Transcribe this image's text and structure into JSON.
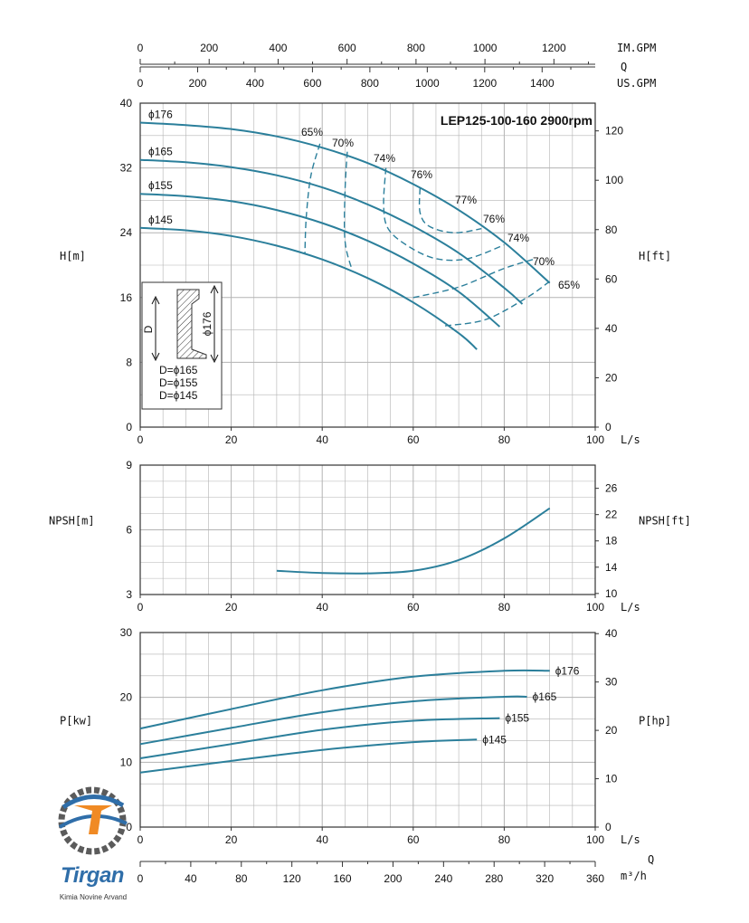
{
  "chart_data": [
    {
      "type": "line",
      "title": "LEP125-100-160 2900rpm",
      "ylabel": "H[m]",
      "ylabel_right": "H[ft]",
      "xlabel": "L/s",
      "xlim": [
        0,
        100
      ],
      "ylim": [
        0,
        40
      ],
      "x_ticks": [
        "0",
        "20",
        "40",
        "60",
        "80",
        "100"
      ],
      "y_ticks": [
        "0",
        "8",
        "16",
        "24",
        "32",
        "40"
      ],
      "y_right_ticks": [
        "0",
        "20",
        "40",
        "60",
        "80",
        "100",
        "120"
      ],
      "top_axes": [
        {
          "unit": "IM.GPM",
          "ticks": [
            "0",
            "200",
            "400",
            "600",
            "800",
            "1000",
            "1200"
          ],
          "per_ls": 13.198
        },
        {
          "unit": "US.GPM",
          "ticks": [
            "0",
            "200",
            "400",
            "600",
            "800",
            "1000",
            "1200",
            "1400"
          ],
          "per_ls": 15.85
        }
      ],
      "top_axis_q": "Q",
      "grid": true,
      "series": [
        {
          "name": "ϕ176",
          "x": [
            0,
            10,
            20,
            30,
            40,
            50,
            60,
            70,
            80,
            90
          ],
          "y": [
            37.6,
            37.3,
            36.8,
            35.9,
            34.5,
            32.6,
            30.0,
            26.8,
            22.8,
            17.8
          ]
        },
        {
          "name": "ϕ165",
          "x": [
            0,
            10,
            20,
            30,
            40,
            50,
            60,
            70,
            80,
            84
          ],
          "y": [
            33.0,
            32.7,
            32.1,
            31.1,
            29.6,
            27.5,
            24.8,
            21.5,
            17.2,
            15.2
          ]
        },
        {
          "name": "ϕ155",
          "x": [
            0,
            10,
            20,
            30,
            40,
            50,
            60,
            70,
            79
          ],
          "y": [
            28.8,
            28.5,
            27.9,
            26.8,
            25.2,
            23.0,
            20.2,
            16.7,
            12.4
          ]
        },
        {
          "name": "ϕ145",
          "x": [
            0,
            10,
            20,
            30,
            40,
            50,
            60,
            70,
            74
          ],
          "y": [
            24.6,
            24.3,
            23.6,
            22.4,
            20.7,
            18.4,
            15.4,
            11.6,
            9.6
          ]
        }
      ],
      "efficiency_labels": [
        "65%",
        "70%",
        "74%",
        "76%",
        "77%",
        "76%",
        "74%",
        "70%",
        "65%"
      ],
      "efficiency_contours": [
        {
          "label": "65%",
          "x": [
            39.5,
            37.5,
            36.5,
            36.2
          ],
          "y": [
            35.0,
            31.0,
            26.0,
            21.5
          ]
        },
        {
          "label": "70%",
          "x": [
            45.5,
            45.0,
            45.0,
            46.5
          ],
          "y": [
            34.0,
            29.0,
            23.0,
            19.5
          ]
        },
        {
          "label": "74%",
          "x": [
            54.0,
            53.5,
            54.5,
            59.0,
            65.0,
            72.0,
            80.0
          ],
          "y": [
            32.0,
            27.5,
            24.5,
            22.3,
            20.8,
            20.8,
            22.5
          ]
        },
        {
          "label": "76%",
          "x": [
            61.5,
            61.5,
            63.5,
            69.0,
            75.0
          ],
          "y": [
            29.5,
            26.5,
            24.8,
            24.0,
            24.5
          ]
        },
        {
          "label": "70%",
          "x": [
            60.0,
            70.0,
            80.0,
            87.0
          ],
          "y": [
            16.0,
            17.3,
            19.6,
            20.8
          ]
        },
        {
          "label": "65%",
          "x": [
            67.0,
            76.0,
            85.0,
            90.0
          ],
          "y": [
            12.5,
            13.3,
            16.0,
            18.0
          ]
        }
      ],
      "inset": {
        "dim_label": "D",
        "diameter_label": "ϕ176",
        "lines": [
          "D=ϕ165",
          "D=ϕ155",
          "D=ϕ145"
        ]
      }
    },
    {
      "type": "line",
      "ylabel": "NPSH[m]",
      "ylabel_right": "NPSH[ft]",
      "xlabel": "L/s",
      "xlim": [
        0,
        100
      ],
      "ylim": [
        3,
        9
      ],
      "x_ticks": [
        "0",
        "20",
        "40",
        "60",
        "80",
        "100"
      ],
      "y_ticks": [
        "3",
        "6",
        "9"
      ],
      "y_right_ticks": [
        "10",
        "14",
        "18",
        "22",
        "26"
      ],
      "grid": true,
      "series": [
        {
          "x": [
            30,
            40,
            50,
            60,
            70,
            80,
            90
          ],
          "y": [
            4.1,
            4.0,
            3.98,
            4.1,
            4.6,
            5.6,
            7.0
          ]
        }
      ]
    },
    {
      "type": "line",
      "ylabel": "P[kw]",
      "ylabel_right": "P[hp]",
      "xlabel": "L/s",
      "xlabel2": "Q",
      "xlim": [
        0,
        100
      ],
      "ylim": [
        0,
        30
      ],
      "x_ticks": [
        "0",
        "20",
        "40",
        "60",
        "80",
        "100"
      ],
      "y_ticks": [
        "0",
        "10",
        "20",
        "30"
      ],
      "y_right_ticks": [
        "0",
        "10",
        "20",
        "30",
        "40"
      ],
      "bottom_axis": {
        "unit": "m³/h",
        "ticks": [
          "0",
          "40",
          "80",
          "120",
          "160",
          "200",
          "240",
          "280",
          "320",
          "360"
        ]
      },
      "grid": true,
      "series": [
        {
          "name": "ϕ176",
          "x": [
            0,
            20,
            40,
            60,
            80,
            90
          ],
          "y": [
            15.2,
            18.2,
            21.1,
            23.2,
            24.1,
            24.1
          ]
        },
        {
          "name": "ϕ165",
          "x": [
            0,
            20,
            40,
            60,
            80,
            85
          ],
          "y": [
            12.8,
            15.3,
            17.7,
            19.4,
            20.1,
            20.1
          ]
        },
        {
          "name": "ϕ155",
          "x": [
            0,
            20,
            40,
            60,
            79
          ],
          "y": [
            10.6,
            12.8,
            15.0,
            16.4,
            16.8
          ]
        },
        {
          "name": "ϕ145",
          "x": [
            0,
            20,
            40,
            60,
            74
          ],
          "y": [
            8.4,
            10.2,
            11.9,
            13.1,
            13.5
          ]
        }
      ]
    }
  ],
  "logo": {
    "name": "Tirgan",
    "subtitle": "Kimia Novine Arvand"
  },
  "colors": {
    "curve": "#2b7f9b",
    "grid": "#b3b3b3",
    "axis": "#333333"
  }
}
